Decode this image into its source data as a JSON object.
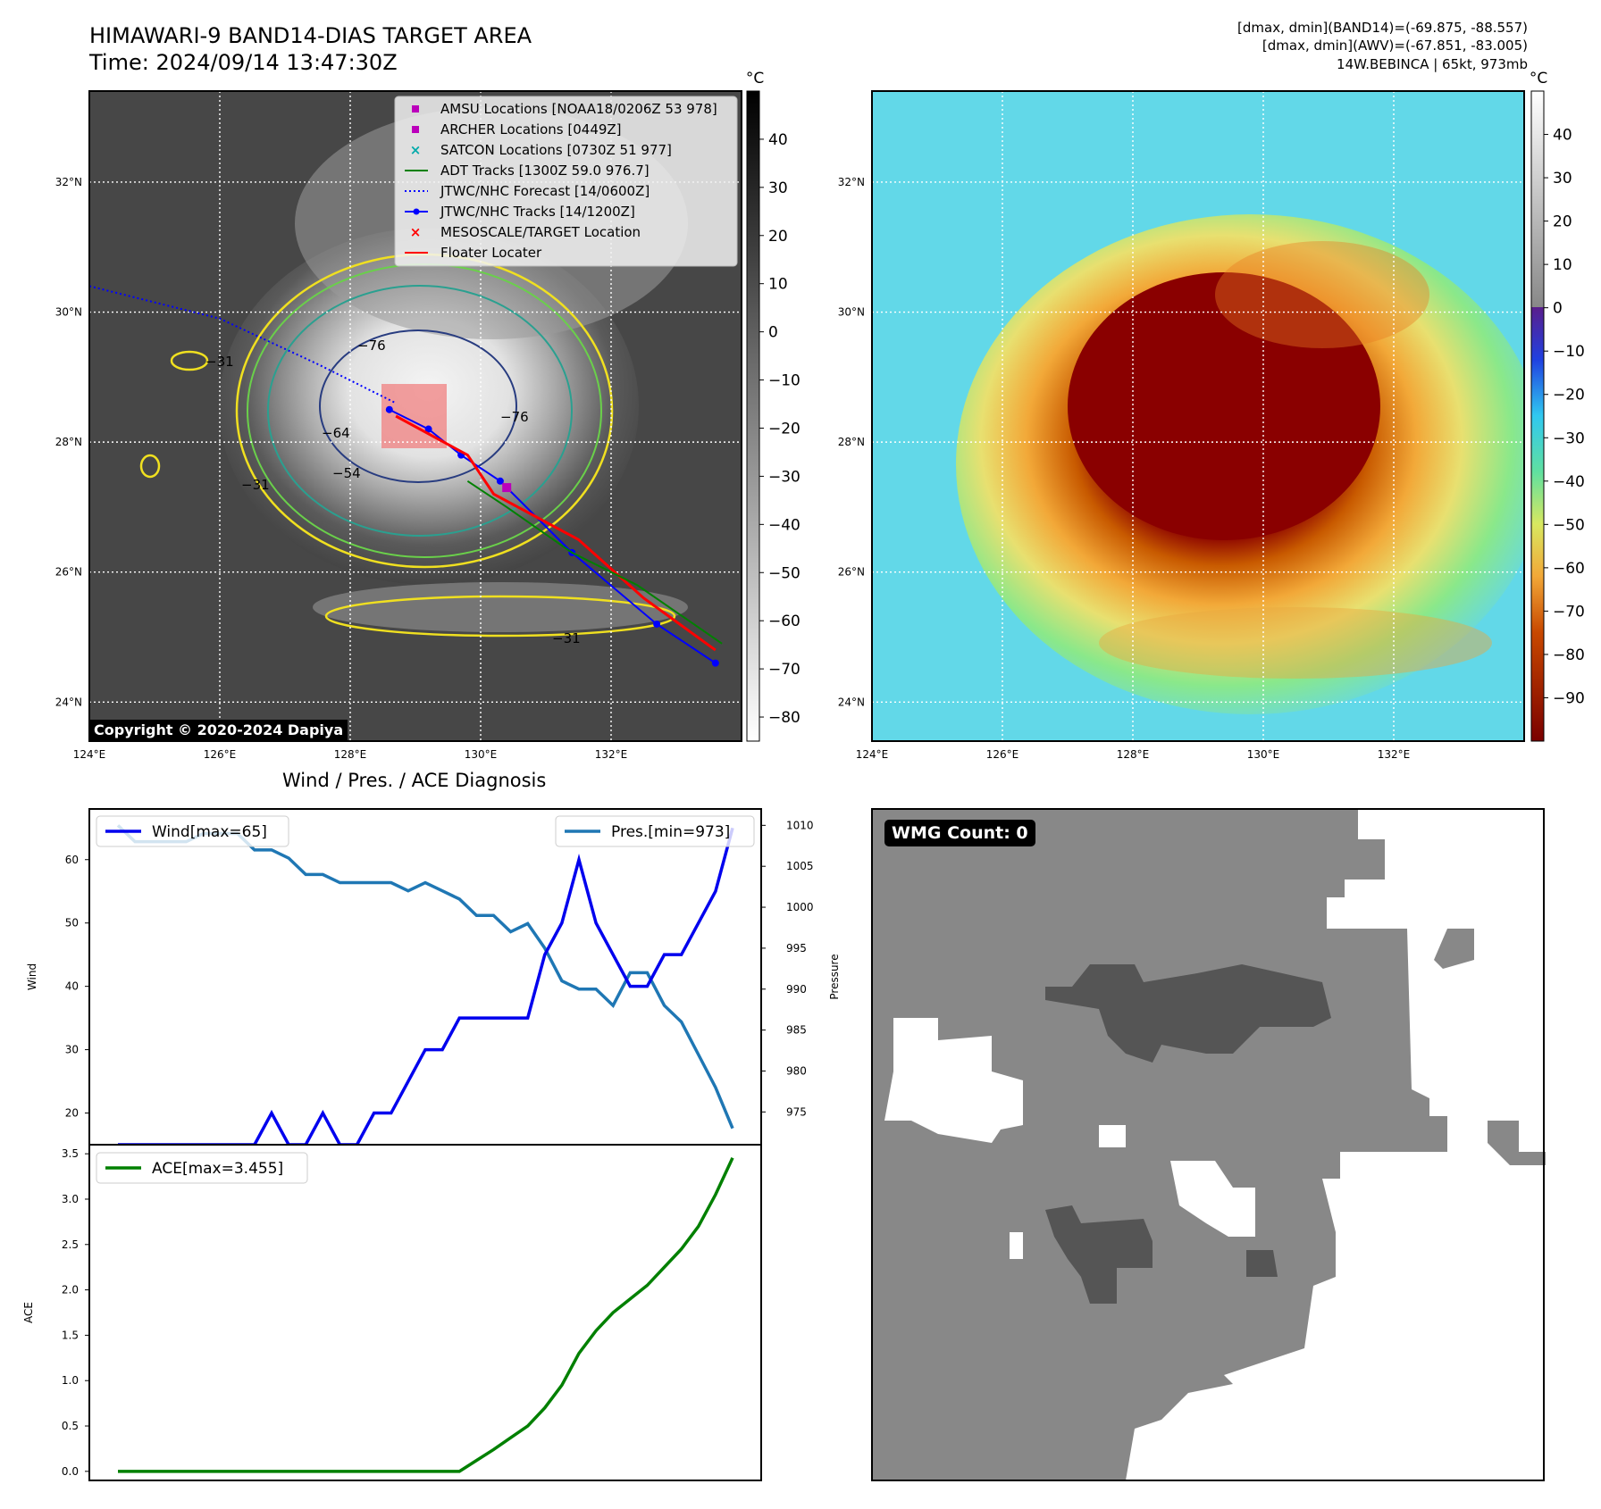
{
  "header": {
    "title": "HIMAWARI-9 BAND14-DIAS TARGET AREA",
    "time": "Time: 2024/09/14 13:47:30Z",
    "right_line1": "[dmax, dmin](BAND14)=(-69.875, -88.557)",
    "right_line2": "[dmax, dmin](AWV)=(-67.851, -83.005)",
    "right_line3": "14W.BEBINCA | 65kt, 973mb"
  },
  "map_axes": {
    "lat_labels": [
      "32°N",
      "30°N",
      "28°N",
      "26°N",
      "24°N"
    ],
    "lon_labels": [
      "124°E",
      "126°E",
      "128°E",
      "130°E",
      "132°E"
    ],
    "lat_values": [
      32,
      30,
      28,
      26,
      24
    ],
    "lon_values": [
      124,
      126,
      128,
      130,
      132
    ],
    "lat_range": [
      23.4,
      33.4
    ],
    "lon_range": [
      124,
      134
    ]
  },
  "colorbar_left": {
    "unit": "°C",
    "ticks": [
      "40",
      "30",
      "20",
      "10",
      "0",
      "−10",
      "−20",
      "−30",
      "−40",
      "−50",
      "−60",
      "−70",
      "−80"
    ],
    "tick_values": [
      40,
      30,
      20,
      10,
      0,
      -10,
      -20,
      -30,
      -40,
      -50,
      -60,
      -70,
      -80
    ],
    "range": [
      -85,
      50
    ]
  },
  "colorbar_right": {
    "unit": "°C",
    "ticks": [
      "40",
      "30",
      "20",
      "10",
      "0",
      "−10",
      "−20",
      "−30",
      "−40",
      "−50",
      "−60",
      "−70",
      "−80",
      "−90"
    ],
    "tick_values": [
      40,
      30,
      20,
      10,
      0,
      -10,
      -20,
      -30,
      -40,
      -50,
      -60,
      -70,
      -80,
      -90
    ],
    "range": [
      -100,
      50
    ]
  },
  "legend": [
    {
      "label": "AMSU Locations [NOAA18/0206Z 53 978]",
      "color": "#bb00bb",
      "symbol": "square"
    },
    {
      "label": "ARCHER Locations [0449Z]",
      "color": "#bb00bb",
      "symbol": "square"
    },
    {
      "label": "SATCON Locations [0730Z 51 977]",
      "color": "#00aaaa",
      "symbol": "x"
    },
    {
      "label": "ADT Tracks [1300Z 59.0 976.7]",
      "color": "#008000",
      "symbol": "line"
    },
    {
      "label": "JTWC/NHC Forecast [14/0600Z]",
      "color": "#0000ff",
      "symbol": "dotted"
    },
    {
      "label": "JTWC/NHC Tracks [14/1200Z]",
      "color": "#0000ff",
      "symbol": "dotline"
    },
    {
      "label": "MESOSCALE/TARGET Location",
      "color": "#ff0000",
      "symbol": "x"
    },
    {
      "label": "Floater Locater",
      "color": "#ff0000",
      "symbol": "line"
    }
  ],
  "contour_labels": [
    "−76",
    "−76",
    "−64",
    "−54",
    "−31",
    "−31",
    "−31"
  ],
  "copyright": "Copyright © 2020-2024 Dapiya",
  "wmg": {
    "label": "WMG Count: 0"
  },
  "chart_data": [
    {
      "type": "line",
      "title": "Wind / Pres. / ACE Diagnosis",
      "ylabel": "Wind",
      "ylabel_right": "Pressure",
      "ylim": [
        15,
        68
      ],
      "ylim_right": [
        971,
        1012
      ],
      "yticks": [
        20,
        30,
        40,
        50,
        60
      ],
      "yticks_right": [
        975,
        980,
        985,
        990,
        995,
        1000,
        1005,
        1010
      ],
      "series": [
        {
          "name": "Wind[max=65]",
          "color": "#0000ee",
          "values": [
            15,
            15,
            15,
            15,
            15,
            15,
            15,
            15,
            15,
            20,
            15,
            15,
            20,
            15,
            15,
            20,
            20,
            25,
            30,
            30,
            35,
            35,
            35,
            35,
            35,
            45,
            50,
            60,
            50,
            45,
            40,
            40,
            45,
            45,
            50,
            55,
            65
          ]
        },
        {
          "name": "Pres.[min=973]",
          "color": "#1f77b4",
          "axis": "right",
          "values": [
            1010,
            1008,
            1008,
            1008,
            1008,
            1009,
            1009,
            1009,
            1007,
            1007,
            1006,
            1004,
            1004,
            1003,
            1003,
            1003,
            1003,
            1002,
            1003,
            1002,
            1001,
            999,
            999,
            997,
            998,
            995,
            991,
            990,
            990,
            988,
            992,
            992,
            988,
            986,
            982,
            978,
            973
          ]
        }
      ]
    },
    {
      "type": "line",
      "ylabel": "ACE",
      "ylim": [
        -0.1,
        3.6
      ],
      "yticks": [
        0.0,
        0.5,
        1.0,
        1.5,
        2.0,
        2.5,
        3.0,
        3.5
      ],
      "ytick_labels": [
        "0.0",
        "0.5",
        "1.0",
        "1.5",
        "2.0",
        "2.5",
        "3.0",
        "3.5"
      ],
      "series": [
        {
          "name": "ACE[max=3.455]",
          "color": "#008000",
          "values": [
            0,
            0,
            0,
            0,
            0,
            0,
            0,
            0,
            0,
            0,
            0,
            0,
            0,
            0,
            0,
            0,
            0,
            0,
            0,
            0,
            0,
            0.12,
            0.24,
            0.37,
            0.5,
            0.7,
            0.95,
            1.3,
            1.55,
            1.75,
            1.9,
            2.05,
            2.25,
            2.45,
            2.7,
            3.05,
            3.455
          ]
        }
      ]
    }
  ]
}
